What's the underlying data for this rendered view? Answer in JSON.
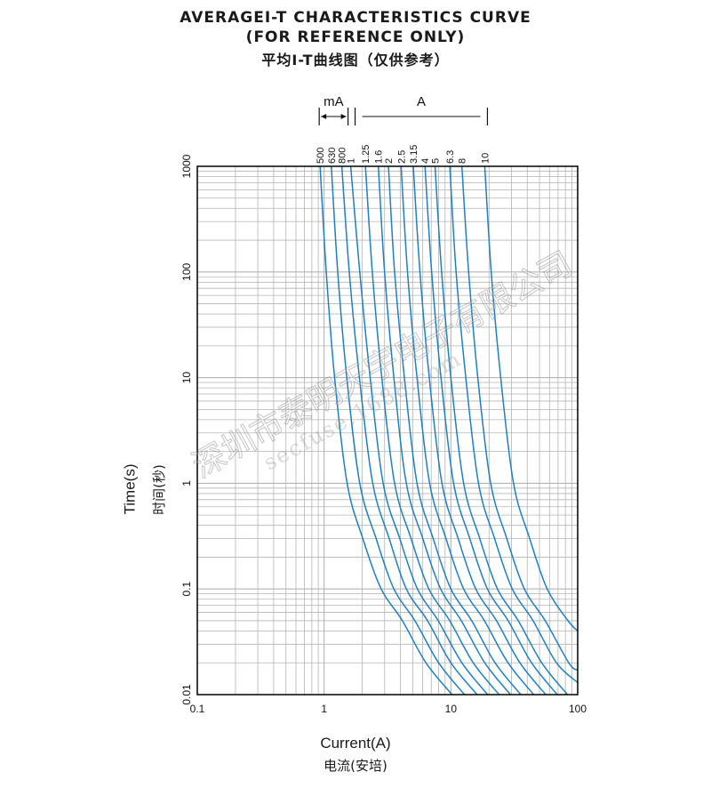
{
  "titles": {
    "line1": "AVERAGEI-T CHARACTERISTICS CURVE",
    "line2": "(FOR REFERENCE ONLY)",
    "line3": "平均I-T曲线图（仅供参考）"
  },
  "watermark": {
    "cn": "深圳市泰明天宇电子有限公司",
    "en": "secfuse.1688.com"
  },
  "colors": {
    "curve": "#1f7fc0",
    "grid": "#b4b4b4",
    "frame": "#000000"
  },
  "chart_data": {
    "type": "line",
    "title": "AVERAGEI-T CHARACTERISTICS CURVE",
    "xlabel": "Current(A)",
    "xlabel_cn": "电流(安培)",
    "ylabel": "Time(s)",
    "ylabel_cn": "时间(秒)",
    "x_scale": "log",
    "y_scale": "log",
    "xlim": [
      0.1,
      100
    ],
    "ylim": [
      0.01,
      1000
    ],
    "grid": true,
    "x_ticks": [
      "0.1",
      "1",
      "10",
      "100"
    ],
    "y_ticks": [
      "1000",
      "100",
      "10",
      "1",
      "0.1",
      "0.01"
    ],
    "range_labels": {
      "ma": "mA",
      "a": "A"
    },
    "series": [
      {
        "name": "500",
        "x": [
          0.93,
          1.04,
          1.21,
          1.52,
          2.02,
          2.82,
          4.15,
          6.35,
          10.2
        ],
        "y": [
          1000,
          100,
          10,
          1,
          0.3,
          0.1,
          0.05,
          0.02,
          0.01
        ]
      },
      {
        "name": "630",
        "x": [
          1.14,
          1.28,
          1.51,
          1.91,
          2.57,
          3.55,
          5.21,
          8.0,
          12.8
        ],
        "y": [
          1000,
          100,
          10,
          1,
          0.3,
          0.1,
          0.05,
          0.02,
          0.01
        ]
      },
      {
        "name": "800",
        "x": [
          1.38,
          1.58,
          1.9,
          2.42,
          3.26,
          4.45,
          6.55,
          10.0,
          16.1
        ],
        "y": [
          1000,
          100,
          10,
          1,
          0.3,
          0.1,
          0.05,
          0.02,
          0.01
        ]
      },
      {
        "name": "1",
        "x": [
          1.62,
          1.91,
          2.31,
          2.92,
          3.95,
          5.45,
          7.95,
          12.2,
          19.5
        ],
        "y": [
          1000,
          100,
          10,
          1,
          0.3,
          0.1,
          0.05,
          0.02,
          0.01
        ]
      },
      {
        "name": "1.25",
        "x": [
          2.12,
          2.4,
          2.85,
          3.6,
          4.85,
          6.7,
          9.8,
          15.0,
          24.0
        ],
        "y": [
          1000,
          100,
          10,
          1,
          0.3,
          0.1,
          0.05,
          0.02,
          0.01
        ]
      },
      {
        "name": "1.6",
        "x": [
          2.68,
          3.0,
          3.55,
          4.45,
          6.0,
          8.3,
          12.1,
          18.5,
          29.5
        ],
        "y": [
          1000,
          100,
          10,
          1,
          0.3,
          0.1,
          0.05,
          0.02,
          0.01
        ]
      },
      {
        "name": "2",
        "x": [
          3.22,
          3.6,
          4.3,
          5.4,
          7.25,
          10.0,
          14.6,
          22.3,
          35.6
        ],
        "y": [
          1000,
          100,
          10,
          1,
          0.3,
          0.1,
          0.05,
          0.02,
          0.01
        ]
      },
      {
        "name": "2.5",
        "x": [
          4.05,
          4.55,
          5.4,
          6.8,
          9.15,
          12.6,
          18.4,
          28.2,
          45.0
        ],
        "y": [
          1000,
          100,
          10,
          1,
          0.3,
          0.1,
          0.05,
          0.02,
          0.01
        ]
      },
      {
        "name": "3.15",
        "x": [
          5.05,
          5.7,
          6.75,
          8.5,
          11.4,
          15.7,
          22.9,
          35.0,
          56.0
        ],
        "y": [
          1000,
          100,
          10,
          1,
          0.3,
          0.1,
          0.05,
          0.02,
          0.01
        ]
      },
      {
        "name": "4",
        "x": [
          6.25,
          7.05,
          8.35,
          10.5,
          14.1,
          19.4,
          28.3,
          43.3,
          69.0
        ],
        "y": [
          1000,
          100,
          10,
          1,
          0.3,
          0.1,
          0.05,
          0.02,
          0.01
        ]
      },
      {
        "name": "5",
        "x": [
          7.5,
          8.45,
          10.0,
          12.6,
          16.9,
          23.3,
          34.0,
          52.0,
          83.0
        ],
        "y": [
          1000,
          100,
          10,
          1,
          0.3,
          0.1,
          0.05,
          0.02,
          0.01
        ]
      },
      {
        "name": "6.3",
        "x": [
          9.8,
          11.0,
          13.1,
          16.5,
          22.1,
          30.5,
          44.5,
          68.0,
          100
        ],
        "y": [
          1000,
          100,
          10,
          1,
          0.3,
          0.1,
          0.05,
          0.02,
          0.013
        ]
      },
      {
        "name": "8",
        "x": [
          12.2,
          13.8,
          16.3,
          20.6,
          27.6,
          38.0,
          55.5,
          85.0,
          100
        ],
        "y": [
          1000,
          100,
          10,
          1,
          0.3,
          0.1,
          0.05,
          0.02,
          0.017
        ]
      },
      {
        "name": "10",
        "x": [
          18.5,
          20.8,
          24.7,
          31.2,
          41.8,
          57.5,
          84.0,
          100
        ],
        "y": [
          1000,
          100,
          10,
          1,
          0.3,
          0.1,
          0.05,
          0.04
        ]
      }
    ]
  }
}
